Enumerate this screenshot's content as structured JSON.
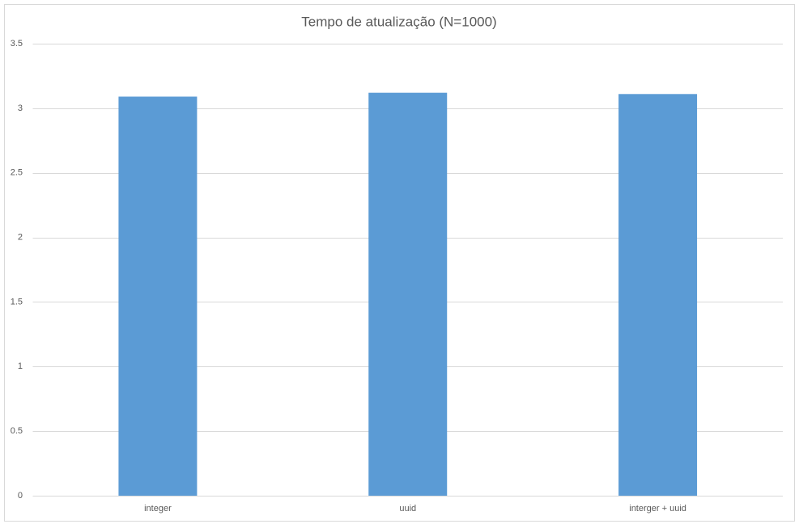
{
  "chart_data": {
    "type": "bar",
    "title": "Tempo de atualização (N=1000)",
    "categories": [
      "integer",
      "uuid",
      "interger + uuid"
    ],
    "values": [
      3.09,
      3.12,
      3.11
    ],
    "color": "#5b9bd5",
    "ylim": [
      0,
      3.5
    ],
    "yticks": [
      0,
      0.5,
      1,
      1.5,
      2,
      2.5,
      3,
      3.5
    ],
    "grid": true
  }
}
